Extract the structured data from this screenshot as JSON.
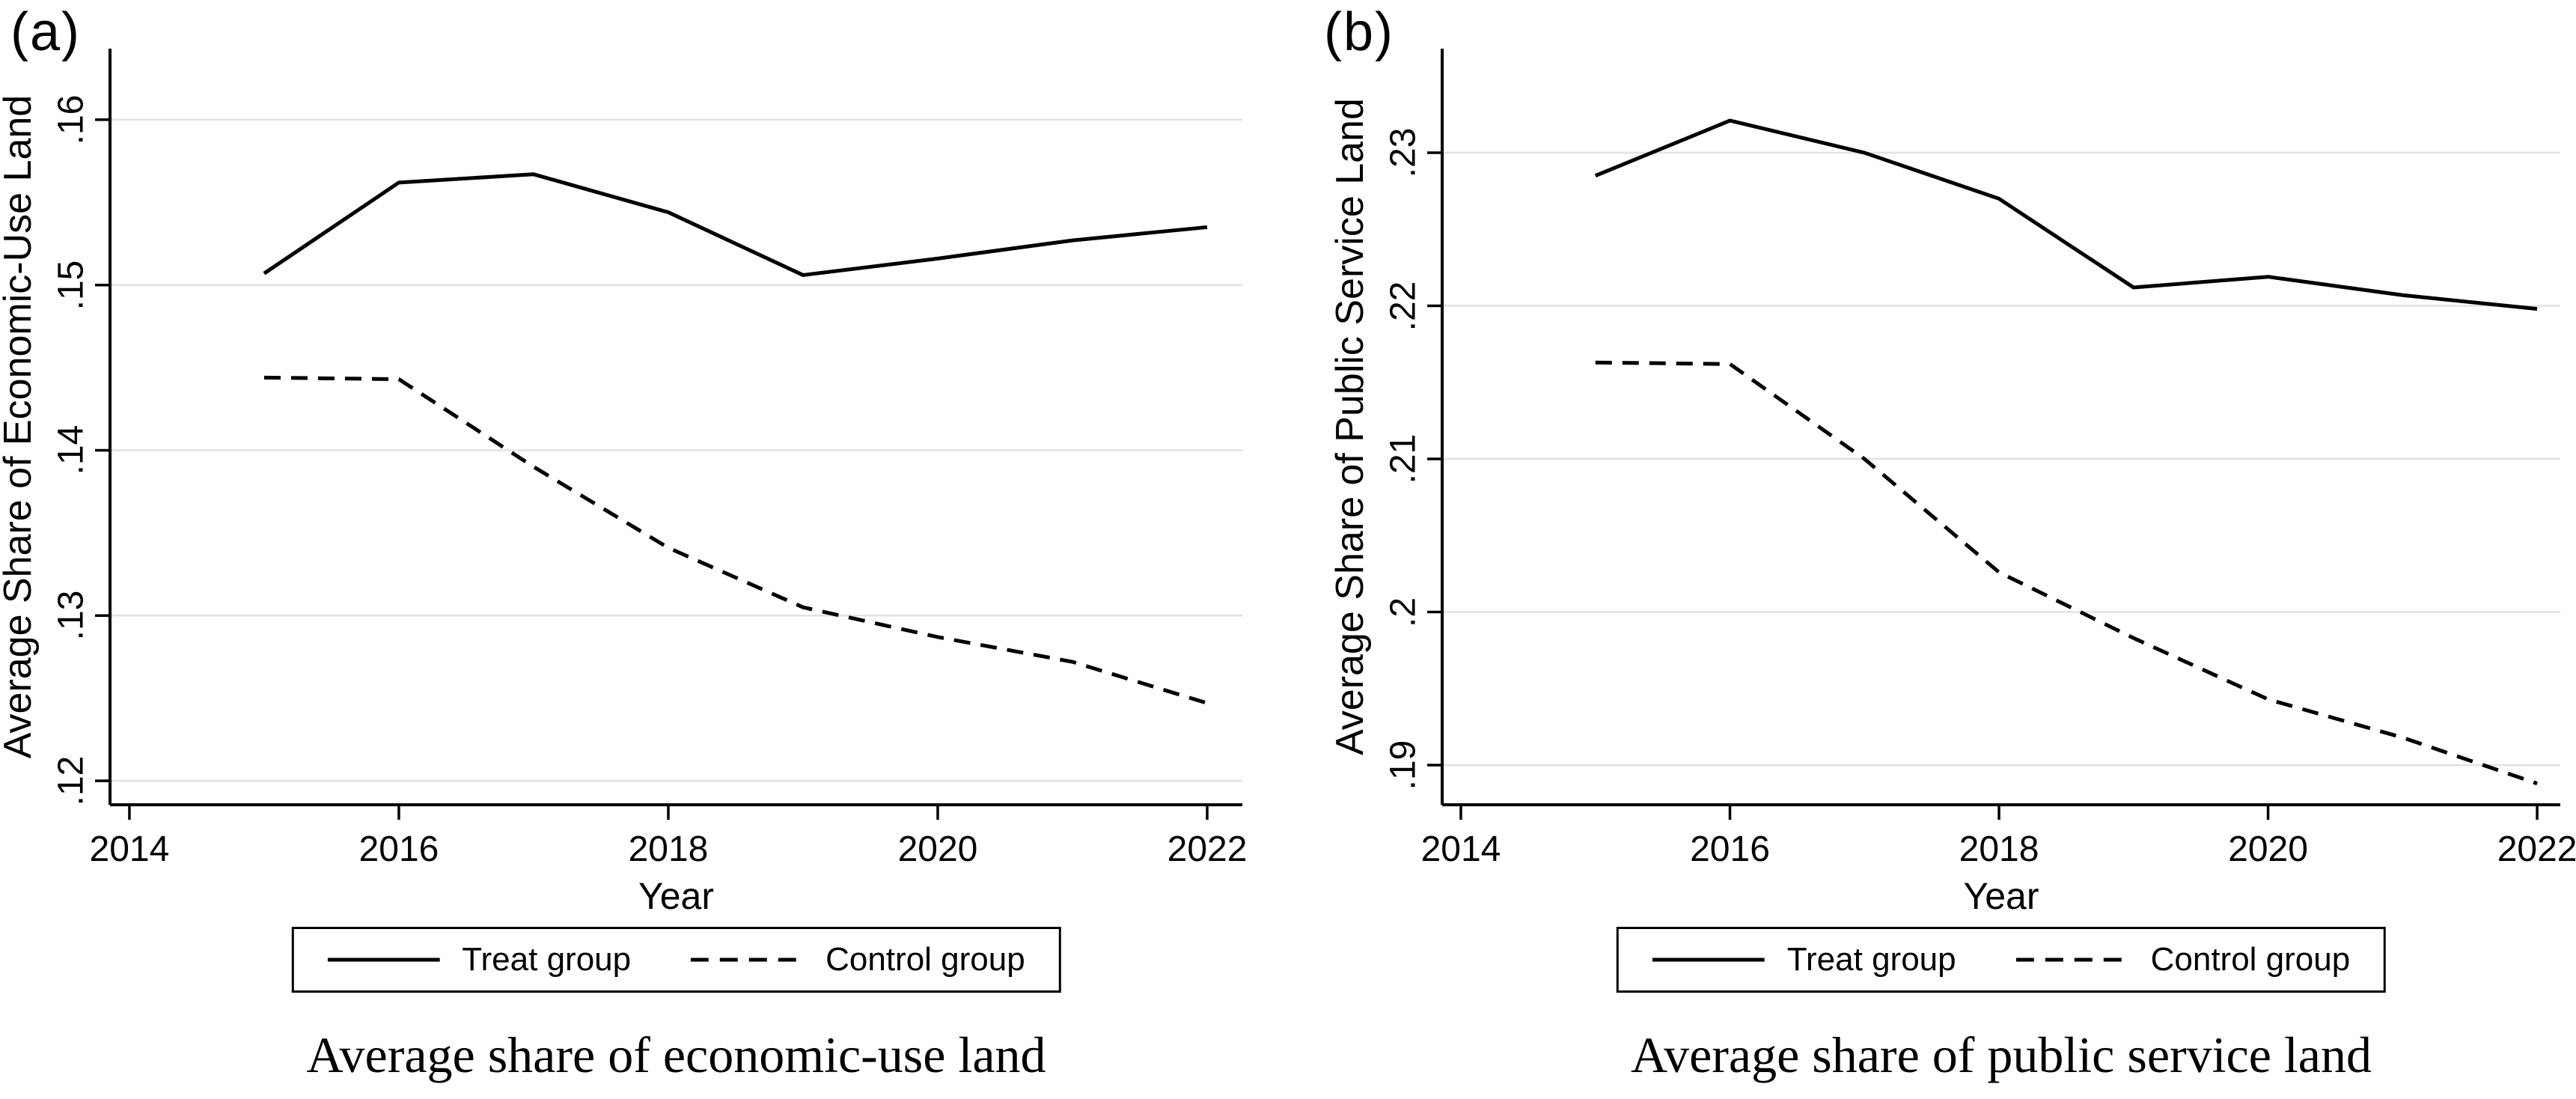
{
  "colors": {
    "background": "#ffffff",
    "line": "#000000",
    "axis": "#000000",
    "grid": "#e2e2e2"
  },
  "panels": [
    {
      "label": "(a)",
      "y_axis_title": "Average Share of Economic-Use Land",
      "x_axis_title": "Year",
      "caption": "Average share of economic-use land",
      "legend": [
        {
          "name": "Treat group",
          "style": "solid"
        },
        {
          "name": "Control group",
          "style": "dashed"
        }
      ],
      "chart_data": {
        "type": "line",
        "title": "Average share of economic-use land",
        "xlabel": "Year",
        "ylabel": "Average Share of Economic-Use Land",
        "x": [
          2015,
          2016,
          2017,
          2018,
          2019,
          2020,
          2021,
          2022
        ],
        "series": [
          {
            "name": "Treat group",
            "dashed": false,
            "values": [
              0.1507,
              0.1562,
              0.1567,
              0.1544,
              0.1506,
              0.1516,
              0.1527,
              0.1535
            ]
          },
          {
            "name": "Control group",
            "dashed": true,
            "values": [
              0.1444,
              0.1443,
              0.139,
              0.1341,
              0.1305,
              0.1287,
              0.1272,
              0.1247
            ]
          }
        ],
        "xticks": [
          {
            "label": "2014",
            "value": 2014
          },
          {
            "label": "2016",
            "value": 2016
          },
          {
            "label": "2018",
            "value": 2018
          },
          {
            "label": "2020",
            "value": 2020
          },
          {
            "label": "2022",
            "value": 2022
          }
        ],
        "yticks": [
          {
            "label": ".12",
            "value": 0.12
          },
          {
            "label": ".13",
            "value": 0.13
          },
          {
            "label": ".14",
            "value": 0.14
          },
          {
            "label": ".15",
            "value": 0.15
          },
          {
            "label": ".16",
            "value": 0.16
          }
        ],
        "xlim": [
          2013.856,
          2022.261
        ],
        "ylim": [
          0.11855,
          0.1643
        ],
        "grid": "horizontal",
        "legend_position": "bottom"
      }
    },
    {
      "label": "(b)",
      "y_axis_title": "Average Share of Public Service Land",
      "x_axis_title": "Year",
      "caption": "Average share of public service land",
      "legend": [
        {
          "name": "Treat group",
          "style": "solid"
        },
        {
          "name": "Control group",
          "style": "dashed"
        }
      ],
      "chart_data": {
        "type": "line",
        "title": "Average share of public service land",
        "xlabel": "Year",
        "ylabel": "Average Share of Public Service Land",
        "x": [
          2015,
          2016,
          2017,
          2018,
          2019,
          2020,
          2021,
          2022
        ],
        "series": [
          {
            "name": "Treat group",
            "dashed": false,
            "values": [
              0.2285,
              0.2321,
              0.23,
              0.227,
              0.2212,
              0.2219,
              0.2207,
              0.2198
            ]
          },
          {
            "name": "Control group",
            "dashed": true,
            "values": [
              0.2163,
              0.2162,
              0.21,
              0.2026,
              0.1983,
              0.1943,
              0.1918,
              0.1888
            ]
          }
        ],
        "xticks": [
          {
            "label": "2014",
            "value": 2014
          },
          {
            "label": "2016",
            "value": 2016
          },
          {
            "label": "2018",
            "value": 2018
          },
          {
            "label": "2020",
            "value": 2020
          },
          {
            "label": "2022",
            "value": 2022
          }
        ],
        "yticks": [
          {
            "label": ".19",
            "value": 0.19
          },
          {
            "label": ".2",
            "value": 0.2
          },
          {
            "label": ".21",
            "value": 0.21
          },
          {
            "label": ".22",
            "value": 0.22
          },
          {
            "label": ".23",
            "value": 0.23
          }
        ],
        "xlim": [
          2013.861,
          2022.172
        ],
        "ylim": [
          0.18741,
          0.2368
        ],
        "grid": "horizontal",
        "legend_position": "bottom"
      }
    }
  ]
}
